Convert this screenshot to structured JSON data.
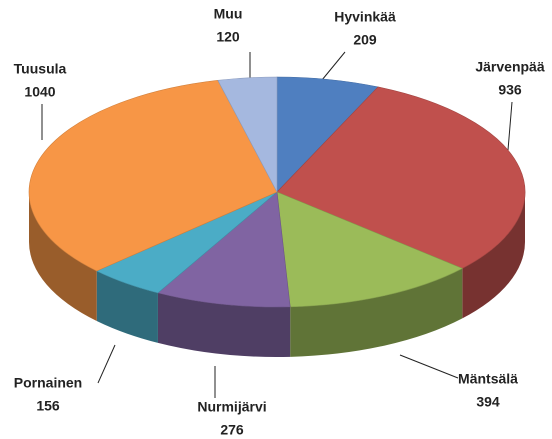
{
  "chart_data": {
    "type": "pie",
    "categories": [
      "Hyvinkää",
      "Järvenpää",
      "Mäntsälä",
      "Nurmijärvi",
      "Pornainen",
      "Tuusula",
      "Muu"
    ],
    "values": [
      209,
      936,
      394,
      276,
      156,
      1040,
      120
    ],
    "colors": [
      "#4f7fc0",
      "#c0504d",
      "#9bbb59",
      "#8064a2",
      "#4bacc6",
      "#f79646",
      "#a5b8df"
    ]
  }
}
